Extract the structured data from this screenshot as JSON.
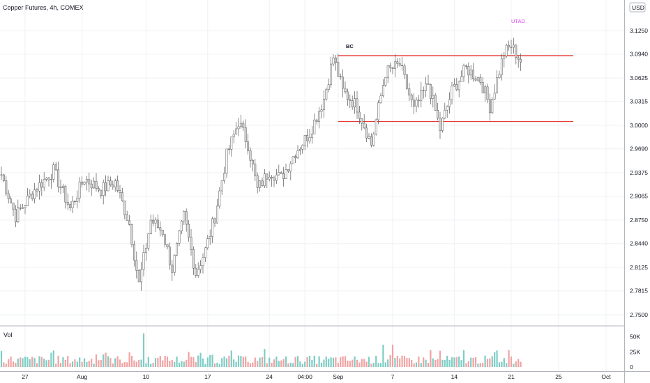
{
  "header": {
    "title": "Copper Futures, 4h, COMEX",
    "currency_button": "USD"
  },
  "volume_pane": {
    "label": "Vol",
    "tick_labels": [
      "50K",
      "25K",
      "0"
    ],
    "ticks": [
      50000,
      25000,
      0
    ],
    "ylim": [
      0,
      60000
    ]
  },
  "colors": {
    "up_volume": "#7ecdc4",
    "down_volume": "#f1a3a3",
    "candle": "#d9d9d9",
    "candle_border": "#555555",
    "level_line": "#e53935",
    "utad": "#e040fb",
    "grid": "#eef0f3",
    "axis": "#787b86"
  },
  "annotations": [
    {
      "text": "BC",
      "color": "#131722"
    },
    {
      "text": "UTAD",
      "color": "#e040fb"
    }
  ],
  "chart_data": {
    "type": "candlestick",
    "title": "Copper Futures, 4h, COMEX",
    "y_ticks": [
      3.125,
      3.094,
      3.0625,
      3.0315,
      3.0,
      2.969,
      2.9375,
      2.9065,
      2.875,
      2.844,
      2.8125,
      2.7815,
      2.75
    ],
    "y_tick_labels": [
      "3.1250",
      "3.0940",
      "3.0625",
      "3.0315",
      "3.0000",
      "2.9690",
      "2.9375",
      "2.9065",
      "2.8750",
      "2.8440",
      "2.8125",
      "2.7815",
      "2.7500"
    ],
    "ylim": [
      2.75,
      3.125
    ],
    "x_tick_labels": [
      "27",
      "Aug",
      "10",
      "17",
      "24",
      "04:00",
      "Sep",
      "7",
      "14",
      "21",
      "25",
      "Oct"
    ],
    "levels": [
      {
        "name": "resistance",
        "price": 3.092,
        "from_label": "Sep"
      },
      {
        "name": "support",
        "price": 3.005,
        "from_label": "Sep"
      }
    ],
    "anchors": [
      {
        "index": 0,
        "close": 2.935
      },
      {
        "index": 6,
        "close": 2.88
      },
      {
        "index": 14,
        "close": 2.915
      },
      {
        "index": 22,
        "close": 2.94
      },
      {
        "index": 29,
        "close": 2.89
      },
      {
        "index": 35,
        "close": 2.93
      },
      {
        "index": 42,
        "close": 2.915
      },
      {
        "index": 48,
        "close": 2.925
      },
      {
        "index": 54,
        "close": 2.87
      },
      {
        "index": 58,
        "close": 2.79
      },
      {
        "index": 63,
        "close": 2.875
      },
      {
        "index": 68,
        "close": 2.86
      },
      {
        "index": 72,
        "close": 2.81
      },
      {
        "index": 77,
        "close": 2.88
      },
      {
        "index": 82,
        "close": 2.805
      },
      {
        "index": 86,
        "close": 2.835
      },
      {
        "index": 90,
        "close": 2.88
      },
      {
        "index": 95,
        "close": 2.96
      },
      {
        "index": 100,
        "close": 3.005
      },
      {
        "index": 104,
        "close": 2.975
      },
      {
        "index": 108,
        "close": 2.915
      },
      {
        "index": 113,
        "close": 2.94
      },
      {
        "index": 118,
        "close": 2.93
      },
      {
        "index": 124,
        "close": 2.965
      },
      {
        "index": 130,
        "close": 2.99
      },
      {
        "index": 136,
        "close": 3.035
      },
      {
        "index": 140,
        "close": 3.09
      },
      {
        "index": 144,
        "close": 3.045
      },
      {
        "index": 150,
        "close": 3.025
      },
      {
        "index": 156,
        "close": 2.975
      },
      {
        "index": 162,
        "close": 3.07
      },
      {
        "index": 168,
        "close": 3.08
      },
      {
        "index": 174,
        "close": 3.02
      },
      {
        "index": 180,
        "close": 3.055
      },
      {
        "index": 185,
        "close": 2.995
      },
      {
        "index": 190,
        "close": 3.045
      },
      {
        "index": 196,
        "close": 3.075
      },
      {
        "index": 202,
        "close": 3.06
      },
      {
        "index": 206,
        "close": 3.025
      },
      {
        "index": 212,
        "close": 3.095
      },
      {
        "index": 215,
        "close": 3.105
      },
      {
        "index": 219,
        "close": 3.085
      }
    ],
    "bar_count": 220
  }
}
